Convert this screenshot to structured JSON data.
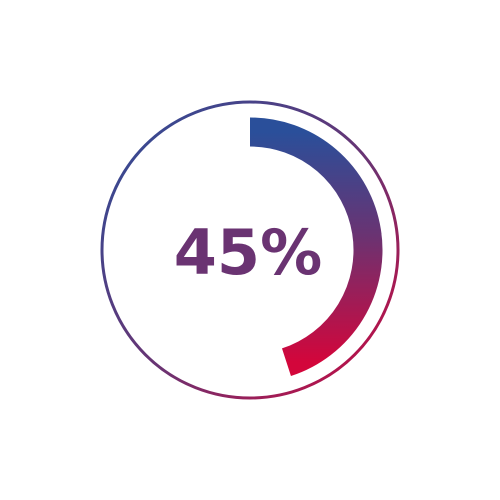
{
  "progress": {
    "value": 45,
    "label": "45%"
  },
  "colors": {
    "gradient_start": "#2a4f9a",
    "gradient_mid": "#6a3372",
    "gradient_end": "#d3063b",
    "text": "#6a3372",
    "background": "#ffffff"
  }
}
